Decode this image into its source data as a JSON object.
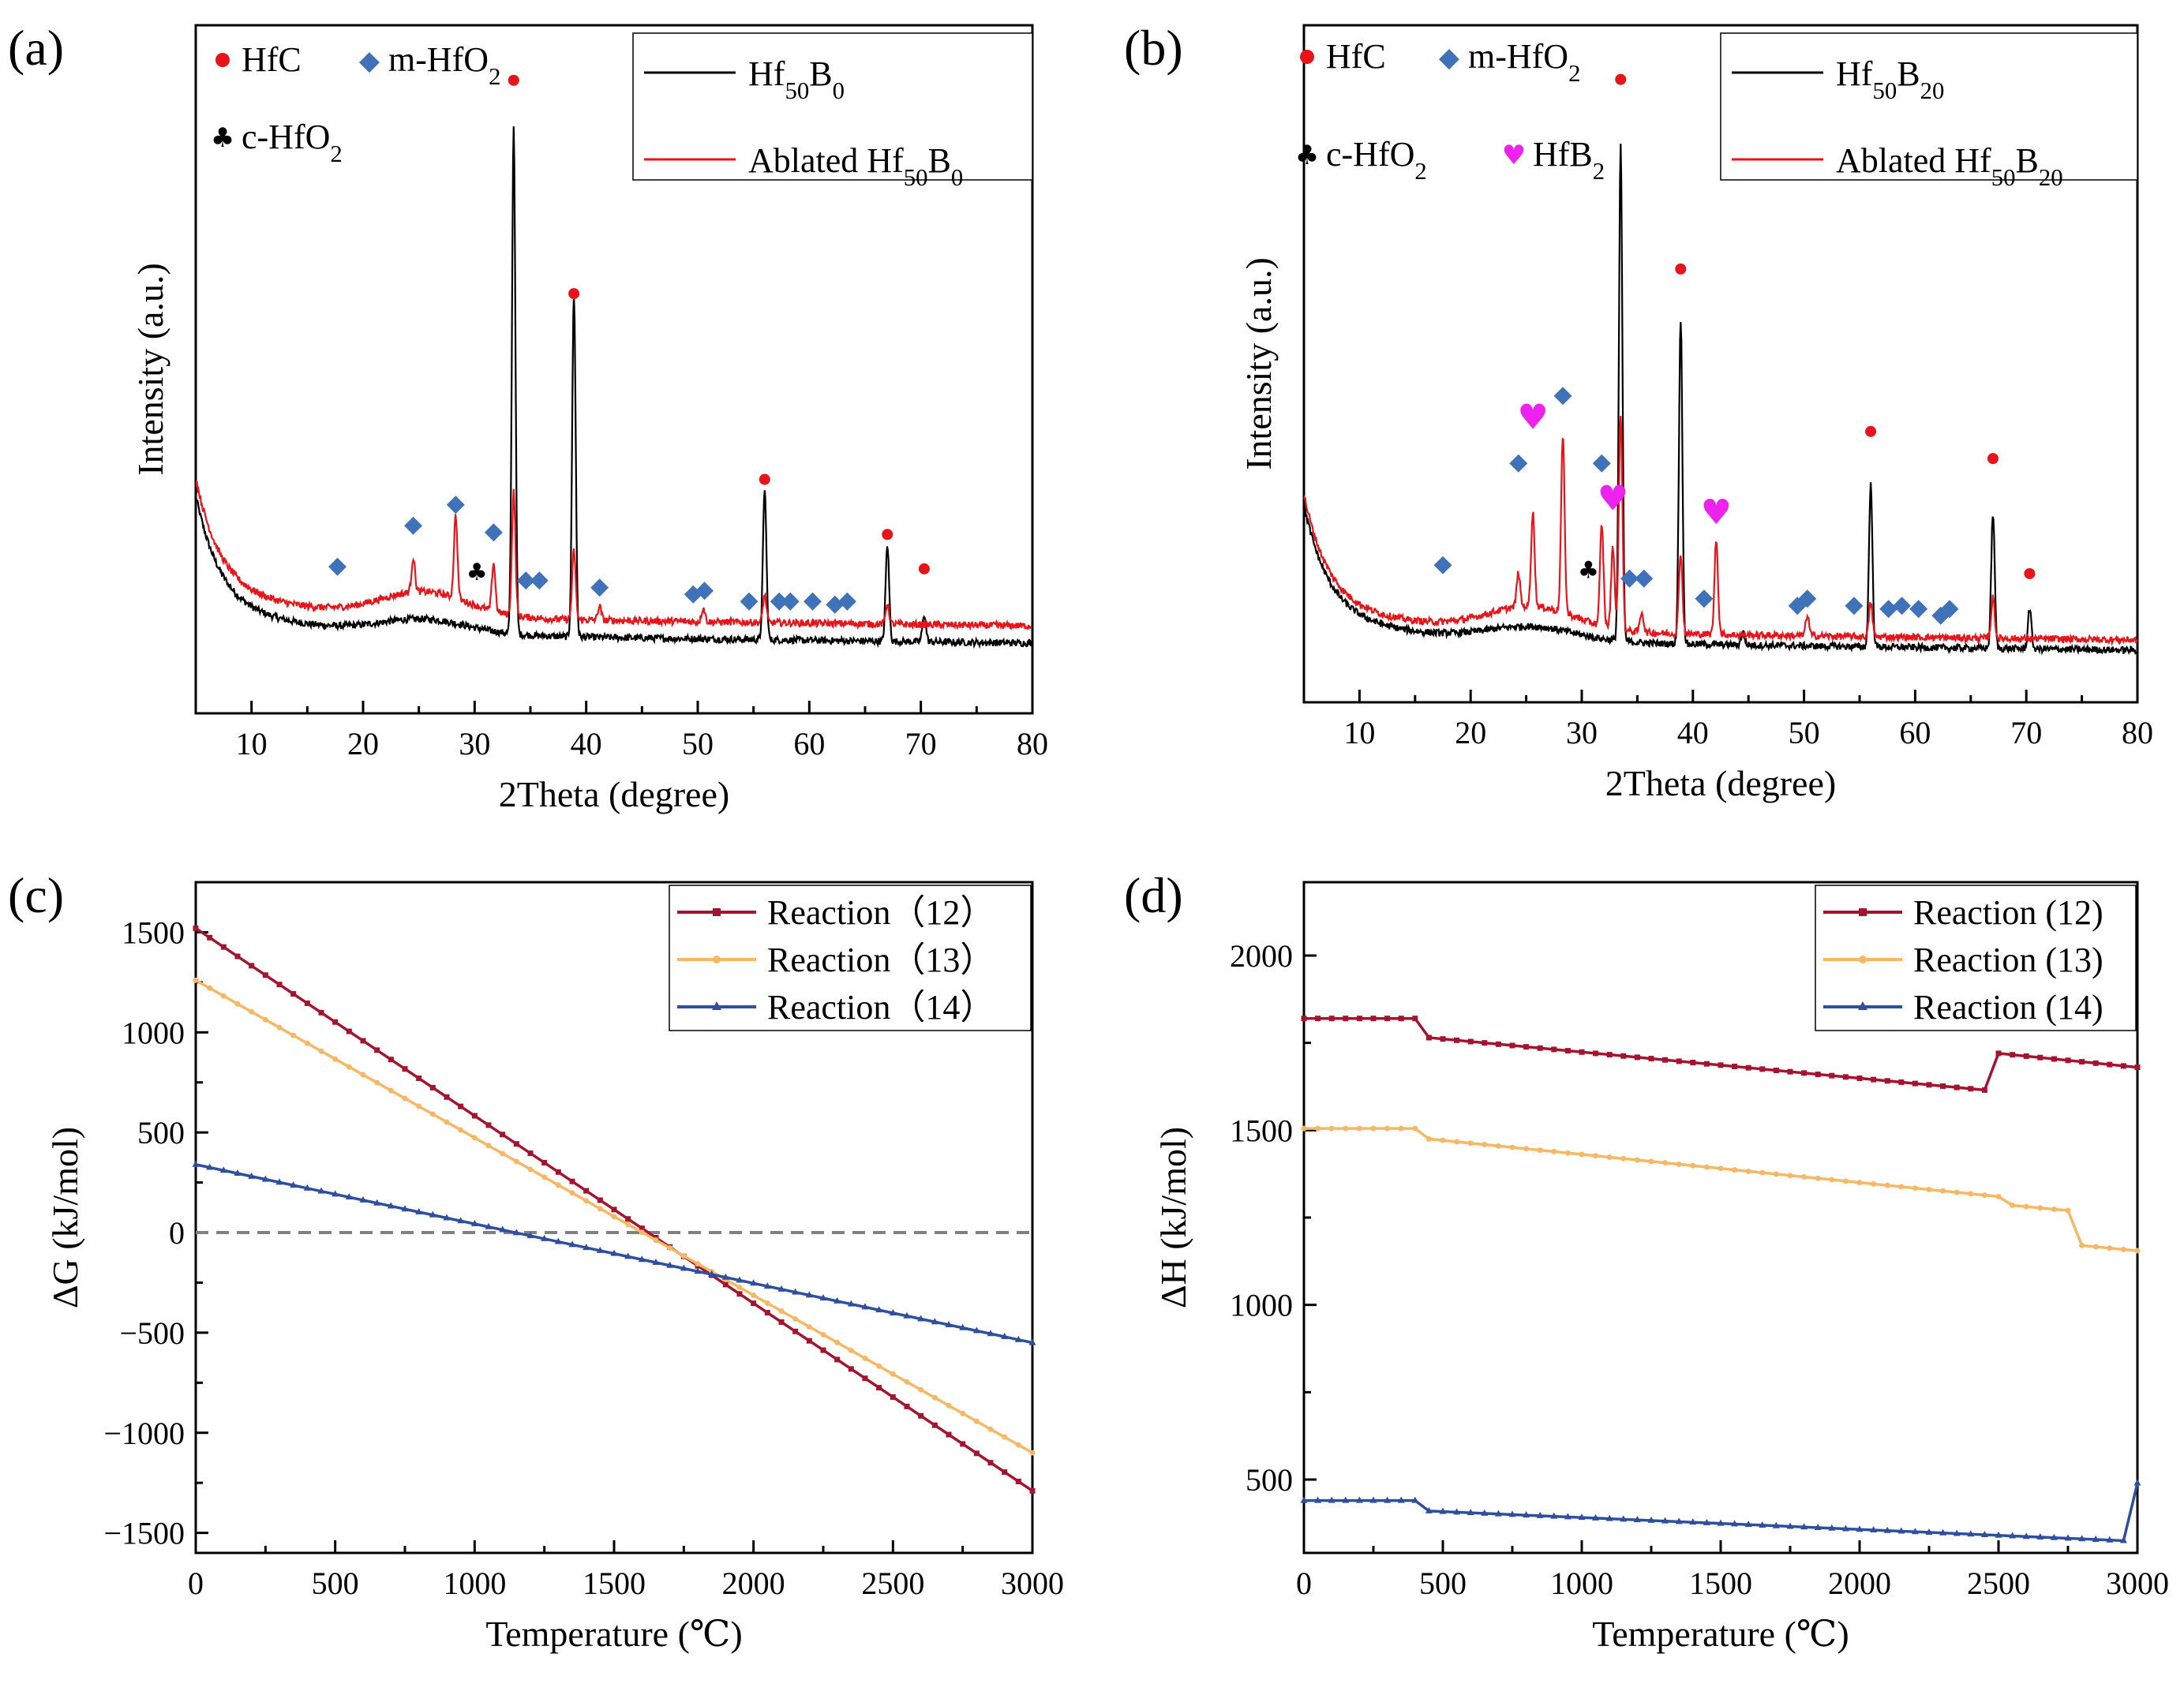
{
  "figure": {
    "panels": [
      {
        "label": "(a)",
        "chart_data": {
          "type": "line",
          "xlabel": "2Theta (degree)",
          "ylabel": "Intensity (a.u.)",
          "xlim": [
            5,
            80
          ],
          "ylim": [
            0,
            100
          ],
          "xticks": [
            "10",
            "20",
            "30",
            "40",
            "50",
            "60",
            "70",
            "80"
          ],
          "yticks_shown": false,
          "grid": false,
          "phase_legend": [
            {
              "symbol": "●",
              "color": "#e8141a",
              "label": "HfC"
            },
            {
              "symbol": "◆",
              "color": "#3f72b8",
              "label": "m-HfO₂"
            },
            {
              "symbol": "♣",
              "color": "#000000",
              "label": "c-HfO₂"
            }
          ],
          "series": [
            {
              "name": "Hf₅₀B₀",
              "color": "#000000",
              "baseline": 11,
              "offset": 0,
              "peaks": [
                [
                  33.5,
                  74
                ],
                [
                  38.9,
                  50
                ],
                [
                  56.0,
                  22
                ],
                [
                  67.0,
                  14
                ],
                [
                  70.3,
                  4
                ]
              ]
            },
            {
              "name": "Ablated Hf₅₀B₀",
              "color": "#e8141a",
              "baseline": 13.5,
              "offset": 2.5,
              "peaks": [
                [
                  24.5,
                  5
                ],
                [
                  28.3,
                  12
                ],
                [
                  31.7,
                  7
                ],
                [
                  33.5,
                  18
                ],
                [
                  38.9,
                  10
                ],
                [
                  41.2,
                  2
                ],
                [
                  50.5,
                  2
                ],
                [
                  56.0,
                  4
                ],
                [
                  67.0,
                  3
                ]
              ]
            }
          ],
          "markers": [
            {
              "phase": "HfC",
              "x": [
                33.5,
                38.9,
                56.0,
                67.0,
                70.3
              ],
              "y": [
                92,
                61,
                34,
                26,
                21
              ]
            },
            {
              "phase": "m-HfO₂",
              "x": [
                17.7,
                24.5,
                28.3,
                31.7,
                34.6,
                35.8,
                41.2,
                49.6,
                50.6,
                54.6,
                57.3,
                58.3,
                60.3,
                62.3,
                63.4
              ],
              "y": [
                22,
                28,
                31,
                27,
                20,
                20,
                19,
                18,
                18.5,
                17,
                17,
                17,
                17,
                16.5,
                17
              ]
            },
            {
              "phase": "c-HfO₂",
              "x": [
                30.2
              ],
              "y": [
                21
              ]
            }
          ]
        }
      },
      {
        "label": "(b)",
        "chart_data": {
          "type": "line",
          "xlabel": "2Theta (degree)",
          "ylabel": "Intensity (a.u.)",
          "xlim": [
            5,
            80
          ],
          "ylim": [
            0,
            100
          ],
          "xticks": [
            "10",
            "20",
            "30",
            "40",
            "50",
            "60",
            "70",
            "80"
          ],
          "yticks_shown": false,
          "grid": false,
          "phase_legend": [
            {
              "symbol": "●",
              "color": "#e8141a",
              "label": "HfC"
            },
            {
              "symbol": "◆",
              "color": "#3f72b8",
              "label": "m-HfO₂"
            },
            {
              "symbol": "♣",
              "color": "#000000",
              "label": "c-HfO₂"
            },
            {
              "symbol": "♥",
              "color": "#ee22ee",
              "label": "HfB₂"
            }
          ],
          "series": [
            {
              "name": "Hf₅₀B₂₀",
              "color": "#000000",
              "baseline": 8.5,
              "offset": 0,
              "peaks": [
                [
                  33.5,
                  73
                ],
                [
                  38.9,
                  48
                ],
                [
                  56.0,
                  24
                ],
                [
                  67.0,
                  20
                ],
                [
                  70.3,
                  6
                ],
                [
                  44.5,
                  2
                ]
              ]
            },
            {
              "name": "Ablated Hf₅₀B₂₀",
              "color": "#e8141a",
              "baseline": 10,
              "offset": 2.5,
              "peaks": [
                [
                  24.3,
                  5
                ],
                [
                  25.6,
                  14
                ],
                [
                  28.3,
                  26
                ],
                [
                  31.8,
                  15
                ],
                [
                  32.8,
                  12
                ],
                [
                  33.5,
                  32
                ],
                [
                  35.4,
                  3
                ],
                [
                  38.9,
                  12
                ],
                [
                  42.1,
                  14
                ],
                [
                  50.3,
                  3
                ],
                [
                  56.0,
                  5
                ],
                [
                  67.0,
                  6
                ]
              ]
            }
          ],
          "markers": [
            {
              "phase": "HfC",
              "x": [
                33.5,
                38.9,
                56.0,
                67.0,
                70.3
              ],
              "y": [
                92,
                64,
                40,
                36,
                19
              ]
            },
            {
              "phase": "m-HfO₂",
              "x": [
                17.5,
                24.3,
                28.3,
                31.8,
                34.3,
                35.6,
                41.0,
                49.4,
                50.3,
                54.5,
                57.6,
                58.8,
                60.3,
                62.3,
                63.1
              ],
              "y": [
                21,
                36,
                46,
                36,
                19,
                19,
                16,
                15,
                16,
                15,
                14.5,
                15,
                14.5,
                13.5,
                14.5
              ]
            },
            {
              "phase": "c-HfO₂",
              "x": [
                30.6
              ],
              "y": [
                20
              ]
            },
            {
              "phase": "HfB₂",
              "x": [
                25.6,
                32.8,
                42.1
              ],
              "y": [
                42,
                30,
                28
              ]
            }
          ]
        }
      },
      {
        "label": "(c)",
        "chart_data": {
          "type": "line",
          "xlabel": "Temperature (℃)",
          "ylabel": "ΔG (kJ/mol)",
          "xlim": [
            0,
            3000
          ],
          "ylim": [
            -1600,
            1750
          ],
          "xticks": [
            0,
            500,
            1000,
            1500,
            2000,
            2500,
            3000
          ],
          "yticks": [
            -1500,
            -1000,
            -500,
            0,
            500,
            1000,
            1500
          ],
          "grid": false,
          "legend_position": "top-right",
          "reference_line": {
            "y": 0,
            "style": "dashed",
            "color": "#808080"
          },
          "series": [
            {
              "name": "Reaction（12）",
              "color": "#a5142f",
              "marker": "square",
              "x": [
                0,
                3000
              ],
              "y": [
                1520,
                -1290
              ]
            },
            {
              "name": "Reaction（13）",
              "color": "#f7b865",
              "marker": "circle",
              "x": [
                0,
                3000
              ],
              "y": [
                1260,
                -1100
              ]
            },
            {
              "name": "Reaction（14）",
              "color": "#2e4ea0",
              "marker": "triangle",
              "x": [
                0,
                3000
              ],
              "y": [
                340,
                -550
              ]
            }
          ]
        }
      },
      {
        "label": "(d)",
        "chart_data": {
          "type": "line",
          "xlabel": "Temperature (℃)",
          "ylabel": "ΔH (kJ/mol)",
          "xlim": [
            0,
            3000
          ],
          "ylim": [
            290,
            2210
          ],
          "xticks": [
            0,
            500,
            1000,
            1500,
            2000,
            2500,
            3000
          ],
          "yticks": [
            500,
            1000,
            1500,
            2000
          ],
          "grid": false,
          "legend_position": "top-right",
          "series": [
            {
              "name": "Reaction (12)",
              "color": "#a5142f",
              "marker": "square",
              "x": [
                0,
                400,
                450,
                2450,
                2500,
                3000
              ],
              "y": [
                1820,
                1820,
                1765,
                1615,
                1720,
                1680
              ]
            },
            {
              "name": "Reaction (13)",
              "color": "#f7b865",
              "marker": "circle",
              "x": [
                0,
                400,
                450,
                2500,
                2550,
                2750,
                2800,
                3000
              ],
              "y": [
                1505,
                1505,
                1475,
                1310,
                1285,
                1270,
                1170,
                1155
              ]
            },
            {
              "name": "Reaction (14)",
              "color": "#2e4ea0",
              "marker": "triangle",
              "x": [
                0,
                400,
                450,
                2950,
                3000
              ],
              "y": [
                440,
                440,
                410,
                325,
                490
              ]
            }
          ]
        }
      }
    ]
  }
}
